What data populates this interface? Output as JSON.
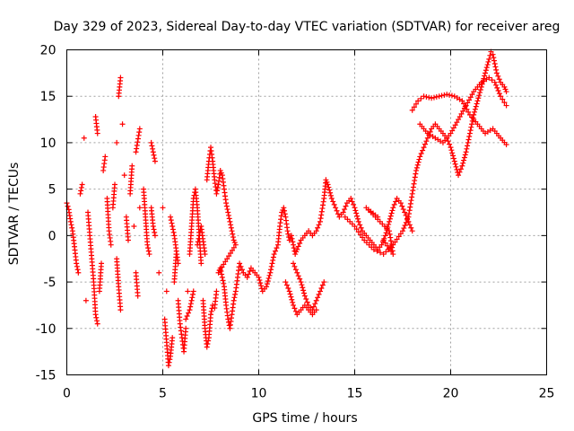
{
  "chart_data": {
    "type": "scatter",
    "title": "Day 329 of 2023, Sidereal Day-to-day VTEC variation (SDTVAR) for receiver areg",
    "xlabel": "GPS time / hours",
    "ylabel": "SDTVAR / TECUs",
    "xlim": [
      0,
      25
    ],
    "ylim": [
      -15,
      20
    ],
    "xticks": [
      0,
      5,
      10,
      15,
      20,
      25
    ],
    "yticks": [
      -15,
      -10,
      -5,
      0,
      5,
      10,
      15,
      20
    ],
    "grid": true,
    "marker": "+",
    "series_color": "#ff0000",
    "series": [
      {
        "name": "SDTVAR",
        "points": [
          [
            0.0,
            3.5
          ],
          [
            0.1,
            2.8
          ],
          [
            0.2,
            1.5
          ],
          [
            0.3,
            0.5
          ],
          [
            0.4,
            -1.2
          ],
          [
            0.5,
            -3.0
          ],
          [
            0.6,
            -4.0
          ],
          [
            0.7,
            4.5
          ],
          [
            0.8,
            5.5
          ],
          [
            0.9,
            10.5
          ],
          [
            1.0,
            -7.0
          ],
          [
            1.1,
            2.5
          ],
          [
            1.2,
            0.0
          ],
          [
            1.3,
            -2.5
          ],
          [
            1.4,
            -5.0
          ],
          [
            1.5,
            -8.5
          ],
          [
            1.6,
            -9.5
          ],
          [
            1.5,
            12.8
          ],
          [
            1.6,
            11.0
          ],
          [
            1.7,
            -6.0
          ],
          [
            1.8,
            -3.0
          ],
          [
            1.9,
            7.0
          ],
          [
            2.0,
            8.5
          ],
          [
            2.1,
            4.0
          ],
          [
            2.2,
            0.5
          ],
          [
            2.3,
            -1.0
          ],
          [
            2.4,
            3.0
          ],
          [
            2.5,
            5.5
          ],
          [
            2.6,
            -2.5
          ],
          [
            2.7,
            -5.5
          ],
          [
            2.8,
            -8.0
          ],
          [
            2.6,
            10.0
          ],
          [
            2.7,
            15.0
          ],
          [
            2.8,
            17.0
          ],
          [
            2.9,
            12.0
          ],
          [
            3.0,
            6.5
          ],
          [
            3.1,
            2.0
          ],
          [
            3.2,
            -0.5
          ],
          [
            3.3,
            4.5
          ],
          [
            3.4,
            7.5
          ],
          [
            3.5,
            1.0
          ],
          [
            3.6,
            -4.0
          ],
          [
            3.7,
            -6.5
          ],
          [
            3.8,
            3.0
          ],
          [
            3.6,
            9.0
          ],
          [
            3.8,
            11.5
          ],
          [
            4.0,
            5.0
          ],
          [
            4.1,
            2.0
          ],
          [
            4.2,
            -1.0
          ],
          [
            4.3,
            -2.0
          ],
          [
            4.4,
            3.0
          ],
          [
            4.5,
            1.0
          ],
          [
            4.6,
            0.0
          ],
          [
            4.4,
            10.0
          ],
          [
            4.6,
            8.0
          ],
          [
            4.8,
            -4.0
          ],
          [
            5.0,
            3.0
          ],
          [
            5.1,
            -9.0
          ],
          [
            5.2,
            -11.5
          ],
          [
            5.3,
            -14.0
          ],
          [
            5.4,
            -13.0
          ],
          [
            5.5,
            -11.0
          ],
          [
            5.6,
            -5.0
          ],
          [
            5.7,
            -2.0
          ],
          [
            5.8,
            -7.0
          ],
          [
            5.9,
            -9.5
          ],
          [
            6.0,
            -11.0
          ],
          [
            6.1,
            -12.5
          ],
          [
            6.2,
            -10.0
          ],
          [
            6.3,
            -6.0
          ],
          [
            6.4,
            -2.0
          ],
          [
            6.5,
            1.0
          ],
          [
            6.6,
            4.0
          ],
          [
            6.7,
            5.0
          ],
          [
            6.8,
            3.0
          ],
          [
            6.9,
            0.0
          ],
          [
            7.0,
            -3.0
          ],
          [
            7.1,
            -7.0
          ],
          [
            7.2,
            -10.0
          ],
          [
            7.3,
            -12.0
          ],
          [
            7.4,
            -11.0
          ],
          [
            7.5,
            -8.5
          ],
          [
            7.6,
            -7.5
          ],
          [
            7.7,
            -7.8
          ],
          [
            7.8,
            -6.0
          ],
          [
            7.3,
            6.0
          ],
          [
            7.4,
            8.0
          ],
          [
            7.5,
            9.5
          ],
          [
            7.6,
            8.0
          ],
          [
            7.7,
            6.0
          ],
          [
            7.8,
            4.5
          ],
          [
            7.9,
            5.5
          ],
          [
            8.0,
            7.0
          ],
          [
            8.1,
            6.5
          ],
          [
            8.2,
            5.0
          ],
          [
            8.3,
            3.5
          ],
          [
            8.4,
            2.5
          ],
          [
            8.5,
            1.5
          ],
          [
            8.6,
            0.5
          ],
          [
            8.7,
            -0.5
          ],
          [
            8.8,
            -1.0
          ],
          [
            7.9,
            -4.0
          ],
          [
            8.0,
            -3.5
          ],
          [
            8.1,
            -4.5
          ],
          [
            8.2,
            -5.5
          ],
          [
            8.3,
            -7.5
          ],
          [
            8.4,
            -9.0
          ],
          [
            8.5,
            -10.0
          ],
          [
            8.6,
            -8.5
          ],
          [
            8.7,
            -7.0
          ],
          [
            8.8,
            -6.0
          ],
          [
            8.9,
            -4.5
          ],
          [
            9.0,
            -3.0
          ],
          [
            9.2,
            -4.0
          ],
          [
            9.4,
            -4.5
          ],
          [
            9.6,
            -3.5
          ],
          [
            9.8,
            -4.0
          ],
          [
            10.0,
            -4.5
          ],
          [
            10.2,
            -6.0
          ],
          [
            10.4,
            -5.5
          ],
          [
            10.6,
            -4.0
          ],
          [
            10.8,
            -2.0
          ],
          [
            11.0,
            -1.0
          ],
          [
            11.1,
            1.0
          ],
          [
            11.2,
            2.5
          ],
          [
            11.3,
            3.0
          ],
          [
            11.4,
            2.0
          ],
          [
            11.5,
            0.5
          ],
          [
            11.6,
            -0.5
          ],
          [
            11.7,
            0.0
          ],
          [
            11.8,
            -1.0
          ],
          [
            11.9,
            -2.0
          ],
          [
            12.0,
            -1.5
          ],
          [
            12.2,
            -0.5
          ],
          [
            12.4,
            0.0
          ],
          [
            12.6,
            0.5
          ],
          [
            12.8,
            0.0
          ],
          [
            13.0,
            0.5
          ],
          [
            13.2,
            1.5
          ],
          [
            13.4,
            4.0
          ],
          [
            13.5,
            6.0
          ],
          [
            13.6,
            5.5
          ],
          [
            13.8,
            4.0
          ],
          [
            14.0,
            3.0
          ],
          [
            14.2,
            2.0
          ],
          [
            14.4,
            2.5
          ],
          [
            14.6,
            3.5
          ],
          [
            14.8,
            4.0
          ],
          [
            15.0,
            3.0
          ],
          [
            15.2,
            1.5
          ],
          [
            15.4,
            0.5
          ],
          [
            15.6,
            0.0
          ],
          [
            15.8,
            -0.5
          ],
          [
            16.0,
            -1.0
          ],
          [
            16.2,
            -1.5
          ],
          [
            16.4,
            -1.0
          ],
          [
            16.6,
            0.0
          ],
          [
            16.8,
            1.5
          ],
          [
            17.0,
            3.0
          ],
          [
            17.2,
            4.0
          ],
          [
            17.4,
            3.5
          ],
          [
            17.6,
            2.5
          ],
          [
            17.8,
            1.5
          ],
          [
            18.0,
            0.5
          ],
          [
            11.8,
            -3.0
          ],
          [
            12.0,
            -4.0
          ],
          [
            12.2,
            -5.0
          ],
          [
            12.4,
            -6.5
          ],
          [
            12.6,
            -7.5
          ],
          [
            12.8,
            -8.0
          ],
          [
            13.0,
            -7.0
          ],
          [
            13.2,
            -6.0
          ],
          [
            13.4,
            -5.0
          ],
          [
            11.4,
            -5.0
          ],
          [
            11.6,
            -6.0
          ],
          [
            11.8,
            -7.5
          ],
          [
            12.0,
            -8.5
          ],
          [
            12.2,
            -8.0
          ],
          [
            12.4,
            -7.5
          ],
          [
            12.6,
            -8.0
          ],
          [
            12.8,
            -8.5
          ],
          [
            13.0,
            -8.0
          ],
          [
            14.5,
            2.0
          ],
          [
            15.0,
            1.0
          ],
          [
            15.5,
            -0.5
          ],
          [
            16.0,
            -1.5
          ],
          [
            16.5,
            -2.0
          ],
          [
            17.0,
            -1.0
          ],
          [
            17.5,
            0.5
          ],
          [
            17.8,
            2.0
          ],
          [
            18.0,
            4.5
          ],
          [
            18.2,
            7.0
          ],
          [
            18.4,
            8.5
          ],
          [
            18.6,
            9.5
          ],
          [
            18.8,
            10.5
          ],
          [
            19.0,
            11.5
          ],
          [
            19.2,
            12.0
          ],
          [
            19.4,
            11.5
          ],
          [
            19.6,
            11.0
          ],
          [
            19.8,
            10.5
          ],
          [
            20.0,
            9.5
          ],
          [
            20.2,
            8.0
          ],
          [
            20.4,
            6.5
          ],
          [
            20.6,
            7.5
          ],
          [
            20.8,
            9.0
          ],
          [
            21.0,
            11.0
          ],
          [
            21.2,
            13.0
          ],
          [
            21.4,
            14.5
          ],
          [
            21.6,
            16.0
          ],
          [
            21.8,
            17.5
          ],
          [
            22.0,
            19.0
          ],
          [
            22.1,
            19.8
          ],
          [
            22.2,
            19.5
          ],
          [
            22.3,
            18.5
          ],
          [
            22.4,
            17.5
          ],
          [
            22.6,
            16.5
          ],
          [
            22.8,
            16.0
          ],
          [
            22.9,
            15.5
          ],
          [
            18.0,
            13.5
          ],
          [
            18.3,
            14.5
          ],
          [
            18.6,
            15.0
          ],
          [
            19.0,
            14.8
          ],
          [
            19.4,
            15.0
          ],
          [
            19.8,
            15.2
          ],
          [
            20.2,
            15.0
          ],
          [
            20.6,
            14.5
          ],
          [
            21.0,
            13.0
          ],
          [
            21.4,
            12.0
          ],
          [
            21.8,
            11.0
          ],
          [
            22.2,
            11.5
          ],
          [
            22.6,
            10.5
          ],
          [
            22.9,
            9.8
          ],
          [
            18.4,
            12.0
          ],
          [
            18.8,
            11.0
          ],
          [
            19.2,
            10.5
          ],
          [
            19.6,
            10.0
          ],
          [
            20.0,
            11.0
          ],
          [
            20.4,
            12.5
          ],
          [
            20.8,
            14.0
          ],
          [
            21.2,
            15.5
          ],
          [
            21.6,
            16.5
          ],
          [
            22.0,
            17.0
          ],
          [
            22.3,
            16.5
          ],
          [
            22.6,
            15.0
          ],
          [
            22.9,
            14.0
          ],
          [
            6.8,
            -1.0
          ],
          [
            7.0,
            1.0
          ],
          [
            7.2,
            -2.0
          ],
          [
            6.6,
            -6.0
          ],
          [
            6.4,
            -8.0
          ],
          [
            6.2,
            -9.0
          ],
          [
            5.8,
            -3.0
          ],
          [
            5.6,
            0.0
          ],
          [
            5.4,
            2.0
          ],
          [
            5.2,
            -6.0
          ],
          [
            16.5,
            -0.5
          ],
          [
            17.0,
            -2.0
          ],
          [
            16.8,
            0.5
          ],
          [
            15.6,
            3.0
          ],
          [
            16.2,
            2.0
          ]
        ]
      }
    ]
  }
}
